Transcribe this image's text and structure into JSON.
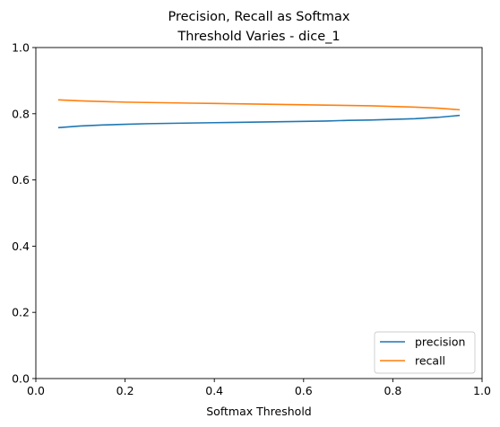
{
  "chart_data": {
    "type": "line",
    "title_line1": "Precision, Recall as Softmax",
    "title_line2": "Threshold Varies - dice_1",
    "xlabel": "Softmax Threshold",
    "ylabel": "",
    "xlim": [
      0,
      1
    ],
    "ylim": [
      0,
      1
    ],
    "x_ticks": [
      0.0,
      0.2,
      0.4,
      0.6,
      0.8,
      1.0
    ],
    "x_tick_labels": [
      "0.0",
      "0.2",
      "0.4",
      "0.6",
      "0.8",
      "1.0"
    ],
    "y_ticks": [
      0.0,
      0.2,
      0.4,
      0.6,
      0.8,
      1.0
    ],
    "y_tick_labels": [
      "0.0",
      "0.2",
      "0.4",
      "0.6",
      "0.8",
      "1.0"
    ],
    "grid": false,
    "legend_position": "lower-right",
    "x": [
      0.05,
      0.1,
      0.15,
      0.2,
      0.25,
      0.3,
      0.35,
      0.4,
      0.45,
      0.5,
      0.55,
      0.6,
      0.65,
      0.7,
      0.75,
      0.8,
      0.85,
      0.9,
      0.95
    ],
    "series": [
      {
        "name": "precision",
        "color": "#1f77b4",
        "values": [
          0.758,
          0.763,
          0.766,
          0.768,
          0.77,
          0.771,
          0.772,
          0.773,
          0.774,
          0.775,
          0.776,
          0.777,
          0.778,
          0.78,
          0.781,
          0.783,
          0.785,
          0.789,
          0.795
        ]
      },
      {
        "name": "recall",
        "color": "#ff7f0e",
        "values": [
          0.842,
          0.839,
          0.837,
          0.835,
          0.834,
          0.833,
          0.832,
          0.831,
          0.83,
          0.829,
          0.828,
          0.827,
          0.826,
          0.825,
          0.824,
          0.822,
          0.82,
          0.817,
          0.812
        ]
      }
    ]
  }
}
